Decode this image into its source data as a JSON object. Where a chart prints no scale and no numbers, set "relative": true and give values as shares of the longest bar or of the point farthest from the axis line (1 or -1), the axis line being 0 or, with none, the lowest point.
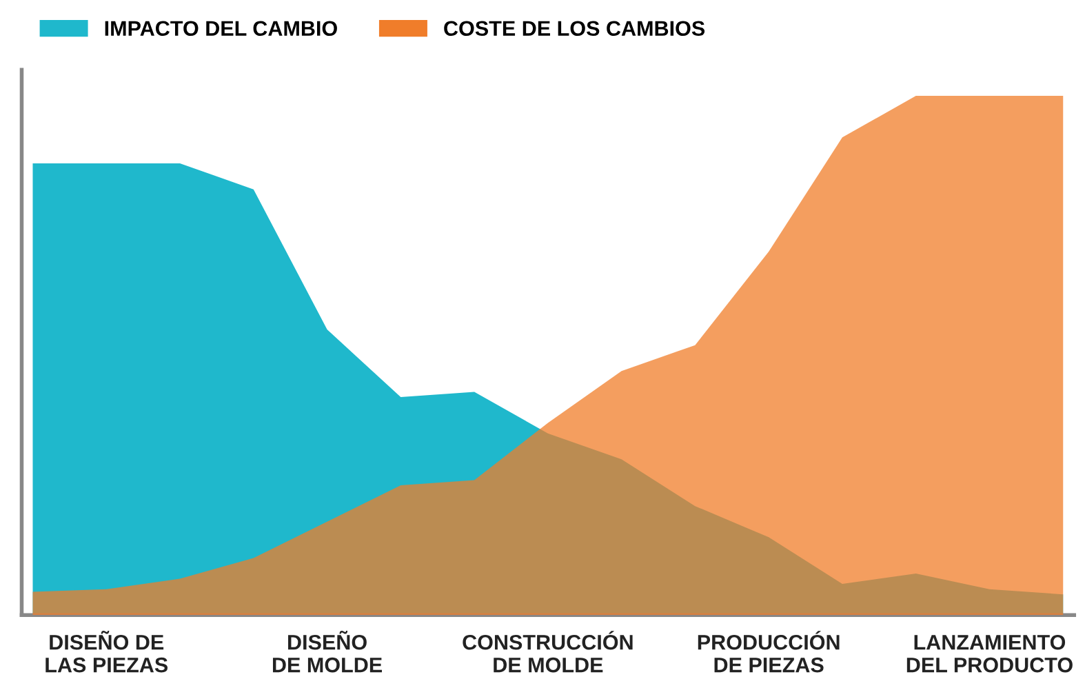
{
  "chart_data": {
    "type": "area",
    "relative": true,
    "legend": "top left",
    "categories": [
      null,
      "DISEÑO DE\nLAS PIEZAS",
      null,
      null,
      "DISEÑO\nDE MOLDE",
      null,
      null,
      "CONSTRUCCIÓN\nDE MOLDE",
      null,
      null,
      "PRODUCCIÓN\nDE PIEZAS",
      null,
      null,
      "LANZAMIENTO\nDEL PRODUCTO",
      null
    ],
    "series": [
      {
        "name": "IMPACTO DEL CAMBIO",
        "color": "#1fb8cc",
        "values": [
          0.87,
          0.87,
          0.87,
          0.82,
          0.55,
          0.42,
          0.43,
          0.35,
          0.3,
          0.21,
          0.15,
          0.06,
          0.08,
          0.05,
          0.04
        ]
      },
      {
        "name": "COSTE DE LOS CAMBIOS",
        "color": "#f07d2a",
        "values": [
          0.045,
          0.05,
          0.07,
          0.11,
          0.18,
          0.25,
          0.26,
          0.37,
          0.47,
          0.52,
          0.7,
          0.92,
          1,
          1,
          1
        ]
      }
    ]
  }
}
